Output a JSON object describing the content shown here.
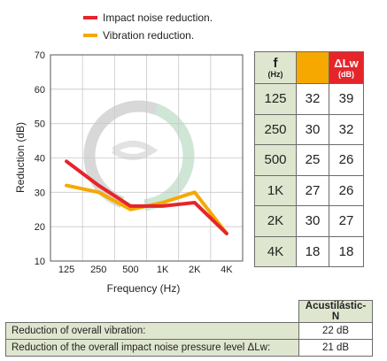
{
  "chart_data": {
    "type": "line",
    "categories": [
      "125",
      "250",
      "500",
      "1K",
      "2K",
      "4K"
    ],
    "series": [
      {
        "name": "Impact noise reduction.",
        "color": "#e5252a",
        "values": [
          39,
          32,
          26,
          26,
          27,
          18
        ]
      },
      {
        "name": "Vibration reduction.",
        "color": "#f6a800",
        "values": [
          32,
          30,
          25,
          27,
          30,
          18
        ]
      }
    ],
    "ylim": [
      10,
      70
    ],
    "yticks": [
      "10",
      "20",
      "30",
      "40",
      "50",
      "60",
      "70"
    ],
    "xlabel": "Frequency (Hz)",
    "ylabel": "Reduction (dB)",
    "grid": true,
    "legend_position": "top"
  },
  "table": {
    "header_f": "f",
    "header_f_unit": "(Hz)",
    "header_lw": "ΔLw",
    "header_lw_unit": "(dB)",
    "rows": [
      {
        "f": "125",
        "vib": "32",
        "lw": "39"
      },
      {
        "f": "250",
        "vib": "30",
        "lw": "32"
      },
      {
        "f": "500",
        "vib": "25",
        "lw": "26"
      },
      {
        "f": "1K",
        "vib": "27",
        "lw": "26"
      },
      {
        "f": "2K",
        "vib": "30",
        "lw": "27"
      },
      {
        "f": "4K",
        "vib": "18",
        "lw": "18"
      }
    ]
  },
  "summary": {
    "product": "Acustilástic-N",
    "rows": [
      {
        "label": "Reduction of overall vibration:",
        "value": "22 dB"
      },
      {
        "label": "Reduction of the overall impact noise pressure level ΔLw:",
        "value": "21 dB"
      }
    ]
  }
}
